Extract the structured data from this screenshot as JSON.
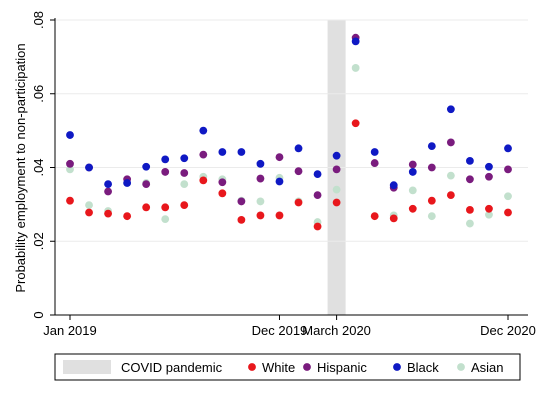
{
  "chart_data": {
    "type": "scatter",
    "ylabel": "Probability employment to non-participation",
    "xlabel": "",
    "ylim": [
      0,
      0.08
    ],
    "yticks": [
      0,
      0.02,
      0.04,
      0.06,
      0.08
    ],
    "ytick_labels": [
      "0",
      ".02",
      ".04",
      ".06",
      ".08"
    ],
    "x": [
      "Jan 2019",
      "Feb 2019",
      "Mar 2019",
      "Apr 2019",
      "May 2019",
      "Jun 2019",
      "Jul 2019",
      "Aug 2019",
      "Sep 2019",
      "Oct 2019",
      "Nov 2019",
      "Dec 2019",
      "Jan 2020",
      "Feb 2020",
      "Mar 2020",
      "Apr 2020",
      "May 2020",
      "Jun 2020",
      "Jul 2020",
      "Aug 2020",
      "Sep 2020",
      "Oct 2020",
      "Nov 2020",
      "Dec 2020"
    ],
    "xtick_labels": [
      {
        "month_index": 0,
        "label": "Jan 2019"
      },
      {
        "month_index": 11,
        "label": "Dec 2019"
      },
      {
        "month_index": 14,
        "label": "March 2020"
      },
      {
        "month_index": 23,
        "label": "Dec 2020"
      }
    ],
    "shaded_period": {
      "label": "COVID pandemic",
      "month_index": 14,
      "color": "#e0e0e0"
    },
    "grid": {
      "y": true,
      "x": false
    },
    "legend_position": "bottom",
    "series": [
      {
        "name": "White",
        "color": "#e8171c",
        "values": [
          0.031,
          0.0278,
          0.0275,
          0.0268,
          0.0292,
          0.0292,
          0.0298,
          0.0365,
          0.033,
          0.0258,
          0.027,
          0.027,
          0.0305,
          0.024,
          0.0305,
          0.052,
          0.0268,
          0.0262,
          0.0288,
          0.031,
          0.0325,
          0.0285,
          0.0288,
          0.0278
        ]
      },
      {
        "name": "Hispanic",
        "color": "#7a1c7e",
        "values": [
          0.041,
          0.04,
          0.0335,
          0.0368,
          0.0355,
          0.0388,
          0.0385,
          0.0435,
          0.036,
          0.0308,
          0.037,
          0.0428,
          0.039,
          0.0325,
          0.0395,
          0.0752,
          0.0412,
          0.0345,
          0.0408,
          0.04,
          0.0468,
          0.0368,
          0.0375,
          0.0395
        ]
      },
      {
        "name": "Black",
        "color": "#0f19c4",
        "values": [
          0.0488,
          0.04,
          0.0355,
          0.0358,
          0.0402,
          0.0422,
          0.0425,
          0.05,
          0.0442,
          0.0442,
          0.041,
          0.0362,
          0.0452,
          0.0382,
          0.0432,
          0.0742,
          0.0442,
          0.0352,
          0.0388,
          0.0458,
          0.0558,
          0.0418,
          0.0402,
          0.0452
        ]
      },
      {
        "name": "Asian",
        "color": "#c2e0cd",
        "values": [
          0.0395,
          0.0298,
          0.0282,
          0.0358,
          0.0358,
          0.026,
          0.0355,
          0.0375,
          0.0368,
          0.031,
          0.0308,
          0.0372,
          0.0308,
          0.0252,
          0.034,
          0.067,
          0.0412,
          0.027,
          0.0338,
          0.0268,
          0.0378,
          0.0248,
          0.0272,
          0.0322
        ]
      }
    ]
  }
}
